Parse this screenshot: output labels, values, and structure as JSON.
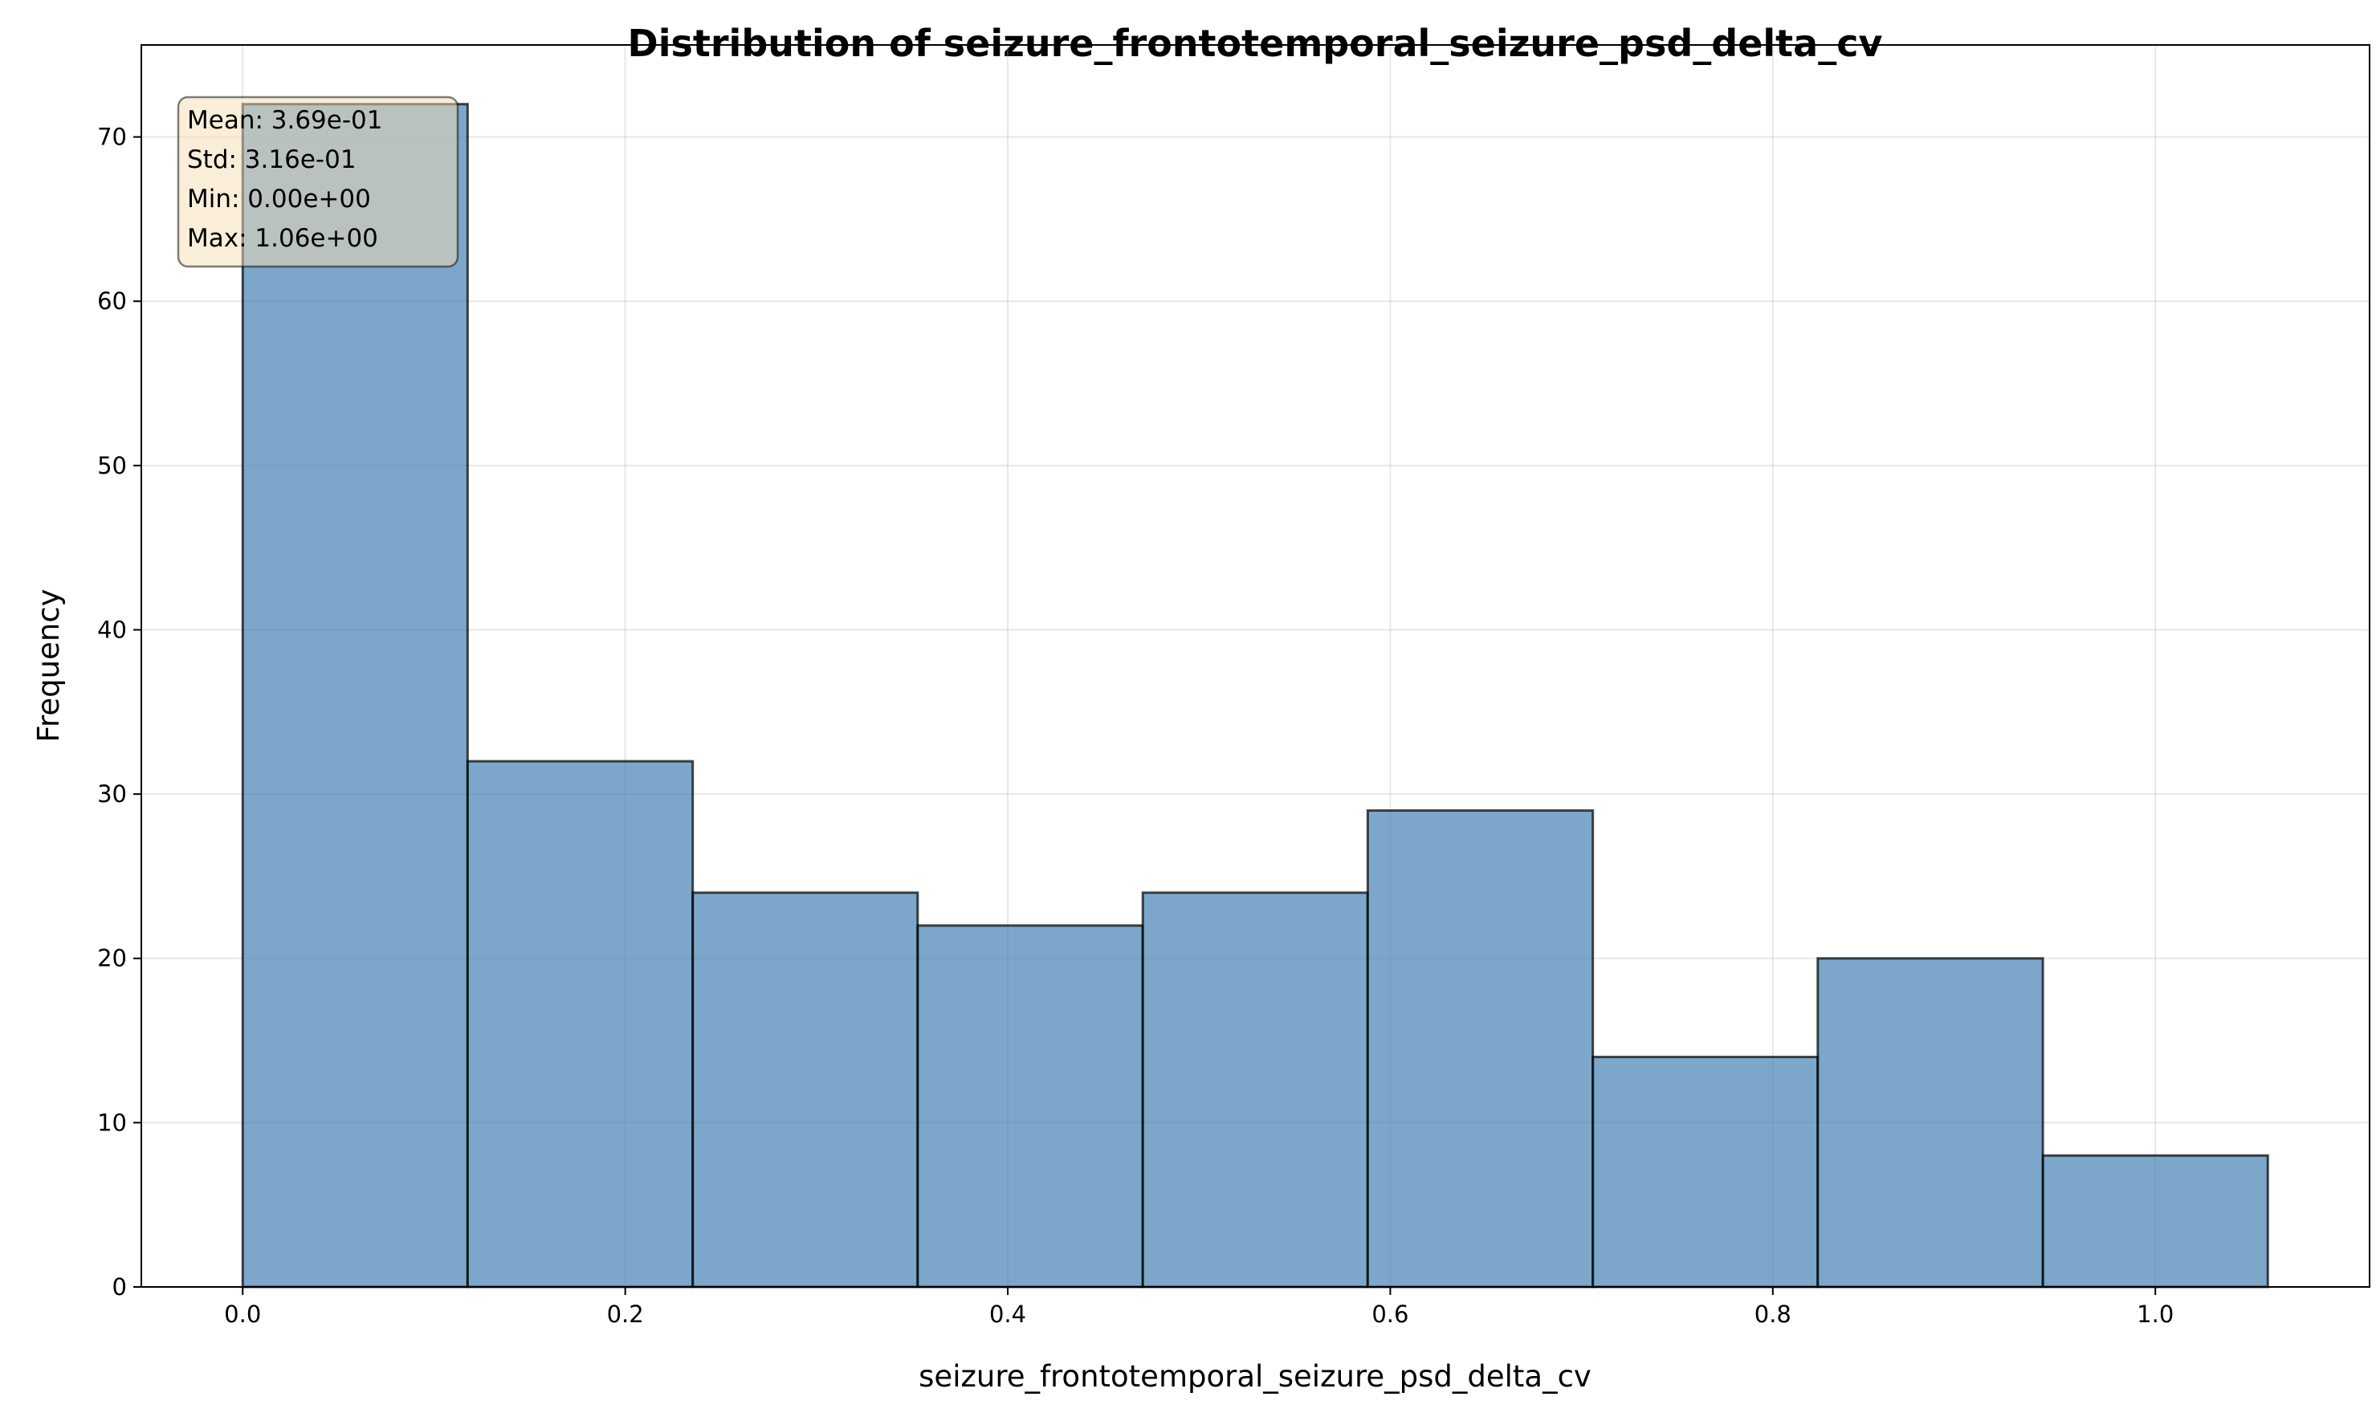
{
  "chart_data": {
    "type": "histogram",
    "title": "Distribution of seizure_frontotemporal_seizure_psd_delta_cv",
    "xlabel": "seizure_frontotemporal_seizure_psd_delta_cv",
    "ylabel": "Frequency",
    "xlim": [
      -0.053,
      1.112
    ],
    "ylim": [
      0,
      75.6
    ],
    "xticks": [
      0.0,
      0.2,
      0.4,
      0.6,
      0.8,
      1.0
    ],
    "xtick_labels": [
      "0.0",
      "0.2",
      "0.4",
      "0.6",
      "0.8",
      "1.0"
    ],
    "yticks": [
      0,
      10,
      20,
      30,
      40,
      50,
      60,
      70
    ],
    "ytick_labels": [
      "0",
      "10",
      "20",
      "30",
      "40",
      "50",
      "60",
      "70"
    ],
    "grid": true,
    "bin_edges": [
      0.0,
      0.1176,
      0.2353,
      0.3529,
      0.4706,
      0.5882,
      0.7059,
      0.8235,
      0.9412,
      1.0588
    ],
    "counts": [
      72,
      32,
      24,
      22,
      24,
      29,
      14,
      20,
      8
    ],
    "bar_color": "#4682b4",
    "bar_edge_color": "#000000",
    "stats": {
      "mean": "Mean: 3.69e-01",
      "std": "Std: 3.16e-01",
      "min": "Min: 0.00e+00",
      "max": "Max: 1.06e+00"
    },
    "stats_box_color": "#f5deb3"
  }
}
